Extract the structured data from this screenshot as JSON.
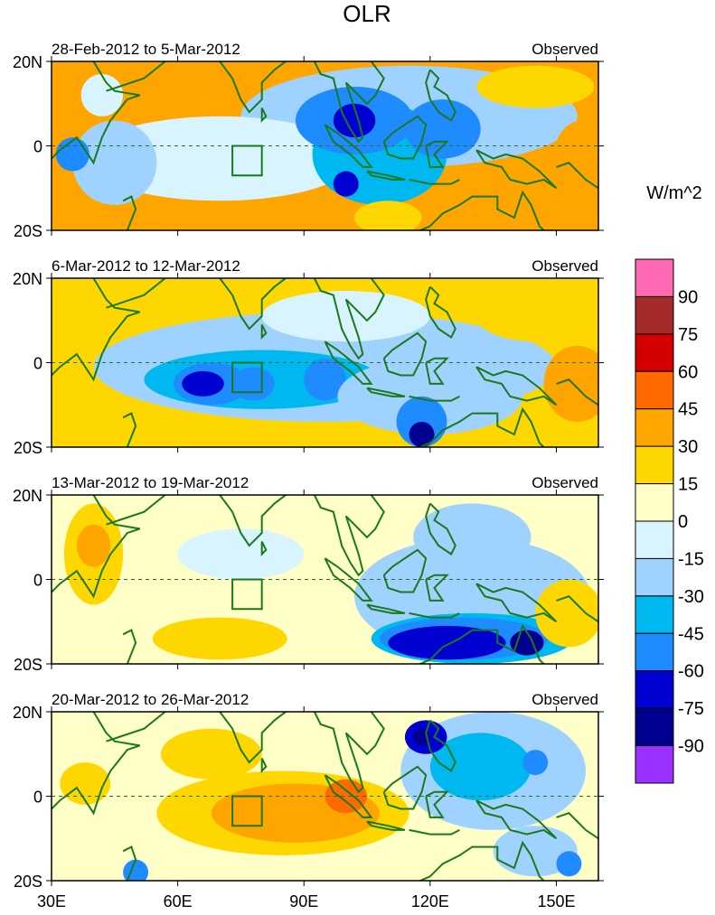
{
  "figure": {
    "title": "OLR",
    "units_label": "W/m^2"
  },
  "chart_data": {
    "type": "heatmap",
    "variable": "OLR anomaly",
    "units": "W/m^2",
    "x_axis": {
      "range": [
        30,
        160
      ],
      "ticks": [
        30,
        60,
        90,
        120,
        150
      ],
      "tick_labels": [
        "30E",
        "60E",
        "90E",
        "120E",
        "150E"
      ]
    },
    "y_axis": {
      "range": [
        -20,
        20
      ],
      "ticks": [
        20,
        0,
        -20
      ],
      "tick_labels": [
        "20N",
        "0",
        "20S"
      ]
    },
    "box_region": {
      "lon": [
        73,
        80
      ],
      "lat": [
        -7,
        0
      ]
    },
    "colorbar": {
      "levels": [
        90,
        75,
        60,
        45,
        30,
        15,
        0,
        -15,
        -30,
        -45,
        -60,
        -75,
        -90
      ],
      "labels": [
        "90",
        "75",
        "60",
        "45",
        "30",
        "15",
        "0",
        "-15",
        "-30",
        "-45",
        "-60",
        "-75",
        "-90"
      ],
      "colors": [
        "#ff69b4",
        "#a52a2a",
        "#d40000",
        "#ff6a00",
        "#ffa500",
        "#ffd700",
        "#ffffc8",
        "#d8f4ff",
        "#a0d2ff",
        "#00b8f0",
        "#1e8cff",
        "#0000d0",
        "#000090",
        "#9b30ff"
      ]
    },
    "panels": [
      {
        "left_label": "28-Feb-2012 to 5-Mar-2012",
        "right_label": "Observed",
        "background_level": 2,
        "features": [
          {
            "lon": 115,
            "lat": 7,
            "rx": 40,
            "ry": 12,
            "level": -2
          },
          {
            "lon": 70,
            "lat": -3,
            "rx": 32,
            "ry": 10,
            "level": -1
          },
          {
            "lon": 108,
            "lat": -2,
            "rx": 16,
            "ry": 12,
            "level": -3
          },
          {
            "lon": 102,
            "lat": 6,
            "rx": 14,
            "ry": 8,
            "level": -4
          },
          {
            "lon": 102,
            "lat": 6,
            "rx": 5,
            "ry": 4,
            "level": -5
          },
          {
            "lon": 100,
            "lat": -9,
            "rx": 3,
            "ry": 3,
            "level": -5
          },
          {
            "lon": 123,
            "lat": 4,
            "rx": 9,
            "ry": 7,
            "level": -4
          },
          {
            "lon": 45,
            "lat": -4,
            "rx": 10,
            "ry": 10,
            "level": -2
          },
          {
            "lon": 35,
            "lat": -2,
            "rx": 4,
            "ry": 4,
            "level": -4
          },
          {
            "lon": 145,
            "lat": 14,
            "rx": 14,
            "ry": 5,
            "level": 1
          },
          {
            "lon": 156,
            "lat": -4,
            "rx": 7,
            "ry": 10,
            "level": 2
          },
          {
            "lon": 110,
            "lat": -17,
            "rx": 8,
            "ry": 4,
            "level": 1
          },
          {
            "lon": 42,
            "lat": 12,
            "rx": 5,
            "ry": 5,
            "level": -1
          }
        ]
      },
      {
        "left_label": "6-Mar-2012 to 12-Mar-2012",
        "right_label": "Observed",
        "background_level": 1,
        "features": [
          {
            "lon": 95,
            "lat": -1,
            "rx": 55,
            "ry": 13,
            "level": -2
          },
          {
            "lon": 80,
            "lat": -4,
            "rx": 28,
            "ry": 7,
            "level": -3
          },
          {
            "lon": 68,
            "lat": -5,
            "rx": 9,
            "ry": 5,
            "level": -4
          },
          {
            "lon": 66,
            "lat": -5,
            "rx": 5,
            "ry": 3,
            "level": -5
          },
          {
            "lon": 78,
            "lat": -5,
            "rx": 5,
            "ry": 4,
            "level": -4
          },
          {
            "lon": 95,
            "lat": -4,
            "rx": 5,
            "ry": 5,
            "level": -4
          },
          {
            "lon": 120,
            "lat": -8,
            "rx": 22,
            "ry": 9,
            "level": -2
          },
          {
            "lon": 118,
            "lat": -14,
            "rx": 6,
            "ry": 6,
            "level": -4
          },
          {
            "lon": 118,
            "lat": -17,
            "rx": 3,
            "ry": 3,
            "level": -6
          },
          {
            "lon": 100,
            "lat": 11,
            "rx": 20,
            "ry": 6,
            "level": -1
          },
          {
            "lon": 145,
            "lat": 11,
            "rx": 14,
            "ry": 6,
            "level": 1
          },
          {
            "lon": 155,
            "lat": -5,
            "rx": 8,
            "ry": 9,
            "level": 2
          },
          {
            "lon": 40,
            "lat": -17,
            "rx": 16,
            "ry": 4,
            "level": 1
          },
          {
            "lon": 40,
            "lat": 11,
            "rx": 6,
            "ry": 8,
            "level": 1
          }
        ]
      },
      {
        "left_label": "13-Mar-2012 to 19-Mar-2012",
        "right_label": "Observed",
        "background_level": 0,
        "features": [
          {
            "lon": 130,
            "lat": -4,
            "rx": 28,
            "ry": 14,
            "level": -2
          },
          {
            "lon": 130,
            "lat": -14,
            "rx": 24,
            "ry": 6,
            "level": -3
          },
          {
            "lon": 128,
            "lat": -14,
            "rx": 20,
            "ry": 5,
            "level": -4
          },
          {
            "lon": 124,
            "lat": -15,
            "rx": 14,
            "ry": 4,
            "level": -5
          },
          {
            "lon": 143,
            "lat": -15,
            "rx": 4,
            "ry": 3,
            "level": -6
          },
          {
            "lon": 130,
            "lat": 10,
            "rx": 14,
            "ry": 8,
            "level": -2
          },
          {
            "lon": 75,
            "lat": 6,
            "rx": 15,
            "ry": 6,
            "level": -1
          },
          {
            "lon": 70,
            "lat": -14,
            "rx": 16,
            "ry": 5,
            "level": 1
          },
          {
            "lon": 40,
            "lat": 6,
            "rx": 7,
            "ry": 12,
            "level": 1
          },
          {
            "lon": 40,
            "lat": 8,
            "rx": 4,
            "ry": 5,
            "level": 2
          },
          {
            "lon": 153,
            "lat": -8,
            "rx": 8,
            "ry": 8,
            "level": 1
          }
        ]
      },
      {
        "left_label": "20-Mar-2012 to 26-Mar-2012",
        "right_label": "Observed",
        "background_level": 0,
        "features": [
          {
            "lon": 85,
            "lat": -4,
            "rx": 30,
            "ry": 10,
            "level": 1
          },
          {
            "lon": 88,
            "lat": -4,
            "rx": 20,
            "ry": 7,
            "level": 2
          },
          {
            "lon": 100,
            "lat": 0,
            "rx": 5,
            "ry": 4,
            "level": 3
          },
          {
            "lon": 68,
            "lat": 10,
            "rx": 12,
            "ry": 6,
            "level": 1
          },
          {
            "lon": 135,
            "lat": 6,
            "rx": 22,
            "ry": 14,
            "level": -2
          },
          {
            "lon": 132,
            "lat": 7,
            "rx": 12,
            "ry": 8,
            "level": -3
          },
          {
            "lon": 119,
            "lat": 14,
            "rx": 5,
            "ry": 4,
            "level": -5
          },
          {
            "lon": 118,
            "lat": 14,
            "rx": 2,
            "ry": 2,
            "level": -6
          },
          {
            "lon": 145,
            "lat": 8,
            "rx": 3,
            "ry": 3,
            "level": -4
          },
          {
            "lon": 145,
            "lat": -13,
            "rx": 10,
            "ry": 6,
            "level": -2
          },
          {
            "lon": 153,
            "lat": -16,
            "rx": 3,
            "ry": 3,
            "level": -4
          },
          {
            "lon": 50,
            "lat": -18,
            "rx": 3,
            "ry": 3,
            "level": -4
          },
          {
            "lon": 38,
            "lat": 3,
            "rx": 6,
            "ry": 5,
            "level": 1
          }
        ]
      }
    ]
  }
}
